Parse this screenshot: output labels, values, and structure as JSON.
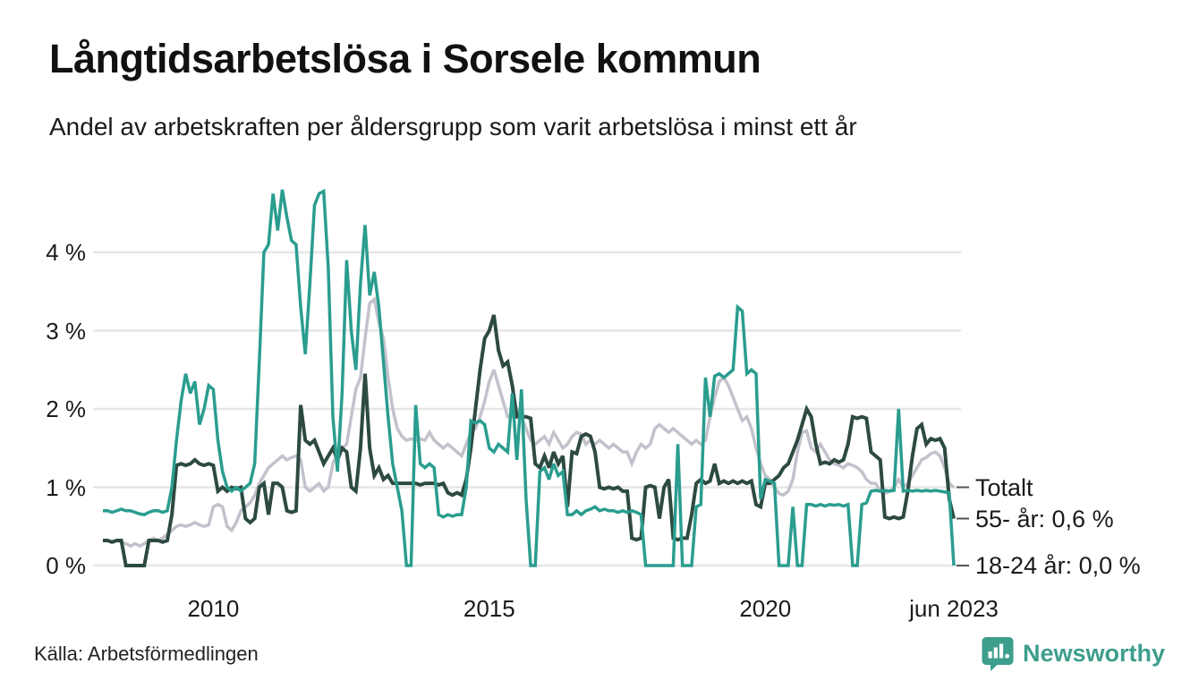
{
  "header": {
    "title": "Långtidsarbetslösa i Sorsele kommun",
    "subtitle": "Andel av arbetskraften per åldersgrupp som varit arbetslösa i minst ett år"
  },
  "chart_data": {
    "type": "line",
    "title": "Långtidsarbetslösa i Sorsele kommun",
    "x_unit": "month",
    "x_range": [
      "2008-01",
      "2023-06"
    ],
    "x_tick_labels": [
      "2010",
      "2015",
      "2020",
      "jun 2023"
    ],
    "x_tick_indices": [
      24,
      84,
      144,
      185
    ],
    "y_tick_labels": [
      "0 %",
      "1 %",
      "2 %",
      "3 %",
      "4 %"
    ],
    "y_tick_values": [
      0,
      1,
      2,
      3,
      4
    ],
    "ylim": [
      0,
      4.9
    ],
    "grid": "horizontal",
    "legend_position": "line-end-labels-right",
    "grid_color": "#e6e6e6",
    "series": [
      {
        "name": "Totalt",
        "end_label": "Totalt",
        "color": "#c3c2cc",
        "values": [
          0.32,
          0.32,
          0.3,
          0.32,
          0.3,
          0.28,
          0.25,
          0.28,
          0.25,
          0.28,
          0.32,
          0.35,
          0.32,
          0.35,
          0.4,
          0.45,
          0.5,
          0.52,
          0.5,
          0.52,
          0.55,
          0.52,
          0.5,
          0.52,
          0.75,
          0.78,
          0.75,
          0.5,
          0.45,
          0.55,
          0.7,
          0.75,
          0.8,
          0.9,
          1.05,
          1.15,
          1.25,
          1.3,
          1.35,
          1.4,
          1.35,
          1.38,
          1.4,
          1.35,
          1.0,
          0.95,
          1.0,
          1.05,
          0.95,
          1.0,
          1.3,
          1.45,
          1.5,
          1.55,
          1.9,
          2.25,
          2.4,
          2.9,
          3.35,
          3.4,
          3.1,
          2.9,
          2.4,
          2.0,
          1.75,
          1.65,
          1.6,
          1.62,
          1.6,
          1.62,
          1.6,
          1.7,
          1.6,
          1.55,
          1.5,
          1.55,
          1.5,
          1.45,
          1.4,
          1.55,
          1.7,
          1.75,
          1.9,
          2.1,
          2.35,
          2.5,
          2.3,
          2.1,
          1.9,
          1.9,
          2.0,
          1.9,
          1.75,
          1.6,
          1.55,
          1.6,
          1.65,
          1.55,
          1.7,
          1.6,
          1.5,
          1.55,
          1.65,
          1.7,
          1.68,
          1.55,
          1.6,
          1.55,
          1.6,
          1.55,
          1.5,
          1.55,
          1.5,
          1.45,
          1.45,
          1.3,
          1.45,
          1.55,
          1.5,
          1.55,
          1.75,
          1.8,
          1.75,
          1.7,
          1.75,
          1.7,
          1.65,
          1.6,
          1.55,
          1.6,
          1.55,
          1.6,
          1.9,
          2.15,
          2.35,
          2.4,
          2.3,
          2.15,
          2.0,
          1.85,
          1.9,
          1.75,
          1.5,
          1.3,
          1.15,
          1.1,
          1.0,
          0.92,
          0.9,
          0.95,
          1.1,
          1.45,
          1.7,
          1.72,
          1.5,
          1.45,
          1.55,
          1.45,
          1.35,
          1.3,
          1.28,
          1.25,
          1.3,
          1.28,
          1.25,
          1.2,
          1.1,
          1.05,
          1.05,
          0.95,
          0.92,
          0.95,
          1.0,
          1.1,
          1.0,
          1.05,
          1.15,
          1.25,
          1.35,
          1.38,
          1.43,
          1.45,
          1.4,
          1.25,
          1.05,
          1.0
        ]
      },
      {
        "name": "55- år",
        "end_label": "55- år: 0,6 %",
        "color": "#2d4a40",
        "values": [
          0.32,
          0.32,
          0.3,
          0.32,
          0.32,
          0.0,
          0.0,
          0.0,
          0.0,
          0.0,
          0.32,
          0.32,
          0.32,
          0.3,
          0.32,
          0.65,
          1.28,
          1.3,
          1.28,
          1.3,
          1.35,
          1.3,
          1.28,
          1.3,
          1.28,
          0.95,
          1.0,
          0.95,
          1.0,
          0.98,
          1.0,
          0.6,
          0.55,
          0.6,
          1.0,
          1.05,
          0.65,
          1.05,
          1.05,
          1.0,
          0.7,
          0.68,
          0.7,
          2.05,
          1.6,
          1.55,
          1.6,
          1.45,
          1.3,
          1.4,
          1.5,
          1.35,
          1.5,
          1.45,
          1.0,
          0.95,
          1.5,
          2.45,
          1.5,
          1.15,
          1.25,
          1.1,
          1.15,
          1.05,
          1.05,
          1.05,
          1.05,
          1.05,
          1.05,
          1.03,
          1.05,
          1.05,
          1.05,
          1.03,
          1.05,
          0.93,
          0.9,
          0.93,
          0.9,
          1.1,
          1.5,
          2.0,
          2.5,
          2.9,
          3.0,
          3.2,
          2.75,
          2.55,
          2.6,
          2.3,
          1.9,
          1.9,
          1.9,
          1.88,
          1.3,
          1.25,
          1.4,
          1.25,
          1.45,
          1.3,
          1.4,
          0.75,
          1.45,
          1.43,
          1.65,
          1.68,
          1.65,
          1.45,
          1.0,
          0.98,
          1.0,
          0.98,
          1.0,
          0.95,
          0.95,
          0.35,
          0.33,
          0.35,
          1.0,
          1.02,
          1.0,
          0.6,
          1.0,
          1.1,
          0.35,
          0.33,
          0.35,
          0.35,
          0.65,
          1.05,
          1.1,
          1.05,
          1.08,
          1.3,
          1.05,
          1.08,
          1.05,
          1.08,
          1.05,
          1.08,
          1.05,
          1.08,
          0.78,
          0.75,
          1.05,
          1.05,
          1.1,
          1.15,
          1.25,
          1.3,
          1.45,
          1.6,
          1.8,
          2.0,
          1.9,
          1.55,
          1.3,
          1.32,
          1.3,
          1.35,
          1.32,
          1.35,
          1.55,
          1.9,
          1.88,
          1.9,
          1.88,
          1.45,
          1.4,
          1.35,
          0.62,
          0.6,
          0.62,
          0.6,
          0.62,
          0.95,
          1.4,
          1.75,
          1.8,
          1.55,
          1.62,
          1.6,
          1.62,
          1.5,
          0.85,
          0.6
        ]
      },
      {
        "name": "18-24 år",
        "end_label": "18-24 år: 0,0 %",
        "color": "#2a9d8f",
        "values": [
          0.7,
          0.7,
          0.68,
          0.7,
          0.72,
          0.7,
          0.7,
          0.68,
          0.66,
          0.65,
          0.68,
          0.7,
          0.7,
          0.68,
          0.7,
          1.0,
          1.6,
          2.1,
          2.45,
          2.2,
          2.35,
          1.8,
          2.0,
          2.3,
          2.25,
          1.6,
          1.2,
          1.0,
          0.95,
          1.0,
          0.95,
          1.0,
          1.05,
          1.3,
          2.6,
          4.0,
          4.1,
          4.75,
          4.28,
          4.8,
          4.45,
          4.15,
          4.1,
          3.3,
          2.7,
          3.6,
          4.6,
          4.75,
          4.78,
          3.8,
          1.9,
          1.2,
          2.2,
          3.9,
          3.0,
          2.5,
          3.6,
          4.35,
          3.45,
          3.75,
          3.3,
          2.6,
          1.9,
          1.3,
          1.0,
          0.7,
          0.0,
          0.0,
          2.05,
          1.3,
          1.25,
          1.3,
          1.25,
          0.65,
          0.62,
          0.65,
          0.63,
          0.65,
          0.65,
          1.0,
          1.85,
          1.82,
          1.85,
          1.8,
          1.5,
          1.45,
          1.55,
          1.5,
          1.45,
          2.2,
          1.35,
          2.25,
          0.85,
          0.0,
          0.0,
          1.2,
          1.25,
          1.1,
          1.3,
          1.15,
          1.2,
          0.65,
          0.65,
          0.7,
          0.65,
          0.7,
          0.72,
          0.75,
          0.7,
          0.72,
          0.7,
          0.7,
          0.68,
          0.7,
          0.68,
          0.7,
          0.68,
          0.65,
          0.0,
          0.0,
          0.0,
          0.0,
          0.0,
          0.0,
          0.0,
          1.55,
          0.0,
          0.0,
          0.0,
          0.75,
          0.78,
          2.4,
          1.9,
          2.42,
          2.45,
          2.4,
          2.45,
          2.5,
          3.3,
          3.25,
          2.45,
          2.5,
          2.45,
          0.85,
          1.1,
          1.08,
          1.05,
          0.0,
          0.0,
          0.0,
          0.75,
          0.0,
          0.0,
          0.78,
          0.78,
          0.76,
          0.78,
          0.76,
          0.78,
          0.77,
          0.78,
          0.76,
          0.78,
          0.0,
          0.0,
          0.78,
          0.8,
          0.95,
          0.96,
          0.95,
          0.96,
          0.95,
          0.96,
          2.0,
          0.95,
          0.96,
          0.95,
          0.96,
          0.95,
          0.96,
          0.95,
          0.96,
          0.95,
          0.94,
          0.93,
          0.0
        ]
      }
    ]
  },
  "footer": {
    "source": "Källa: Arbetsförmedlingen",
    "brand": "Newsworthy",
    "brand_color": "#3d9e8c"
  }
}
